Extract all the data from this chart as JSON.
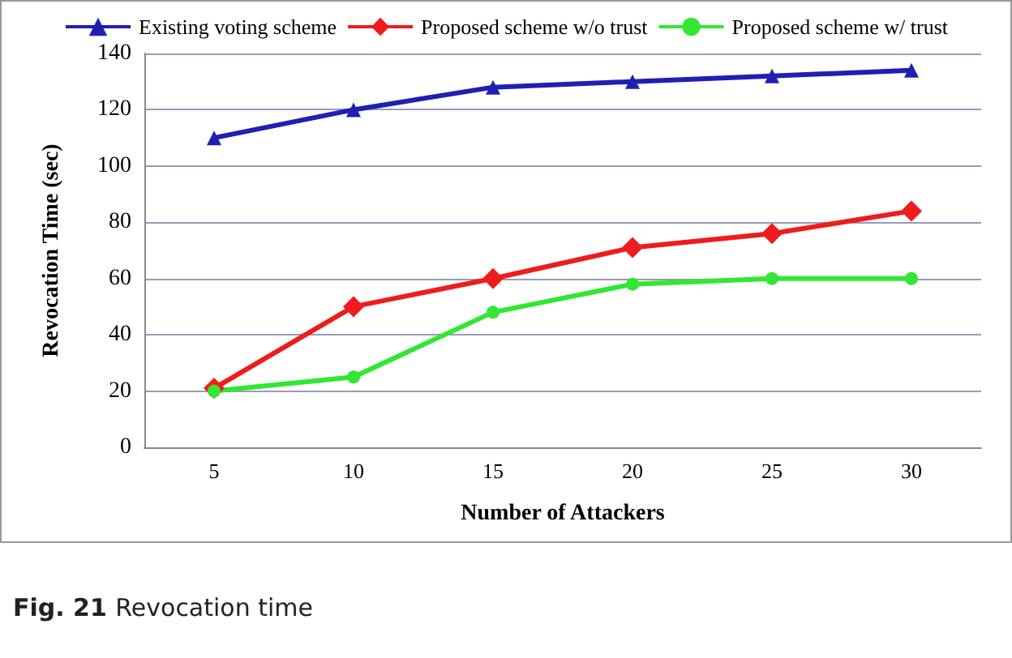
{
  "chart_data": {
    "type": "line",
    "xlabel": "Number of Attackers",
    "ylabel": "Revocation Time (sec)",
    "categories": [
      "5",
      "10",
      "15",
      "20",
      "25",
      "30"
    ],
    "series": [
      {
        "name": "Existing voting scheme",
        "color": "#1f1fb4",
        "marker": "triangle",
        "values": [
          110,
          120,
          128,
          130,
          132,
          134
        ]
      },
      {
        "name": "Proposed scheme w/o trust",
        "color": "#ee1c1c",
        "marker": "diamond",
        "values": [
          21,
          50,
          60,
          71,
          76,
          84
        ]
      },
      {
        "name": "Proposed scheme w/ trust",
        "color": "#33e633",
        "marker": "circle",
        "values": [
          20,
          25,
          48,
          58,
          60,
          60
        ]
      }
    ],
    "ylim": [
      0,
      140
    ],
    "yticks": [
      0,
      20,
      40,
      60,
      80,
      100,
      120,
      140
    ],
    "grid": "y",
    "legend": "top",
    "annotations": [
      "Fig. 21 Revocation time"
    ]
  }
}
